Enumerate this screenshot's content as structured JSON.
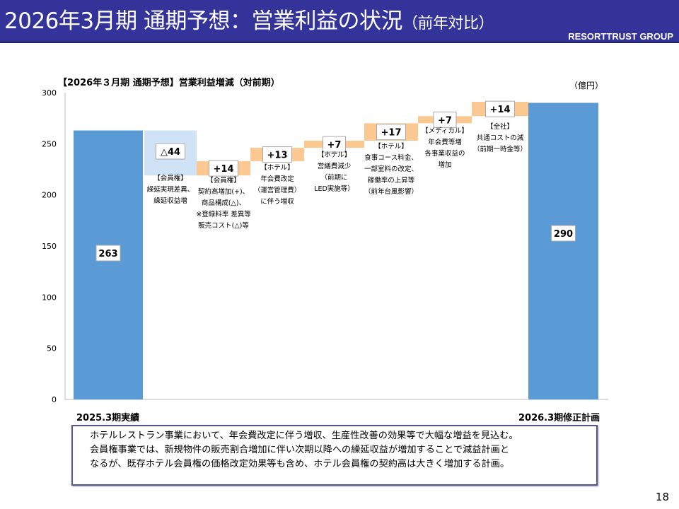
{
  "header": {
    "title": "2026年3月期 通期予想：営業利益の状況",
    "title_suffix": "（前年対比）",
    "brand": "RESORTTRUST GROUP"
  },
  "chart_data": {
    "type": "waterfall",
    "title": "【2026年３月期 通期予想】営業利益増減（対前期）",
    "unit": "（億円）",
    "ylim": [
      0,
      300
    ],
    "yticks": [
      0,
      50,
      100,
      150,
      200,
      250,
      300
    ],
    "start": {
      "label": "2025.3期実績",
      "value": 263,
      "value_label": "263"
    },
    "end": {
      "label": "2026.3期修正計画",
      "value": 290,
      "value_label": "290"
    },
    "steps": [
      {
        "delta": -44,
        "value_label": "△44",
        "note": [
          "【会員権】",
          "繰延実現差異、",
          "繰延収益増"
        ]
      },
      {
        "delta": 14,
        "value_label": "+14",
        "note": [
          "【会員権】",
          "契約高増加(+)、",
          "商品構成(△)、",
          "※登録料率 差異等",
          "販売コスト(△)等"
        ]
      },
      {
        "delta": 13,
        "value_label": "+13",
        "note": [
          "【ホテル】",
          "年会費改定",
          "（運営管理費）",
          "に伴う増収"
        ]
      },
      {
        "delta": 7,
        "value_label": "+7",
        "note": [
          "【ホテル】",
          "営繕費減少",
          "（前期に",
          "LED実施等）"
        ]
      },
      {
        "delta": 17,
        "value_label": "+17",
        "note": [
          "【ホテル】",
          "食事コース料金、",
          "一部室料の改定、",
          "稼働率の上昇等",
          "（前年台風影響）"
        ]
      },
      {
        "delta": 7,
        "value_label": "+7",
        "note": [
          "【メディカル】",
          "年会費等増",
          "各事業収益の",
          "増加"
        ]
      },
      {
        "delta": 14,
        "value_label": "+14",
        "note": [
          "【全社】",
          "共通コストの減",
          "（前期一時金等）"
        ]
      }
    ],
    "colors": {
      "total": "#5b9bd5",
      "decrease": "#cfe2f6",
      "increase": "#fbc891"
    }
  },
  "note": [
    "ホテルレストラン事業において、年会費改定に伴う増収、生産性改善の効果等で大幅な増益を見込む。",
    "会員権事業では、新規物件の販売割合増加に伴い次期以降への繰延収益が増加することで減益計画と",
    "なるが、既存ホテル会員権の価格改定効果等も含め、ホテル会員権の契約高は大きく増加する計画。"
  ],
  "page_number": "18"
}
